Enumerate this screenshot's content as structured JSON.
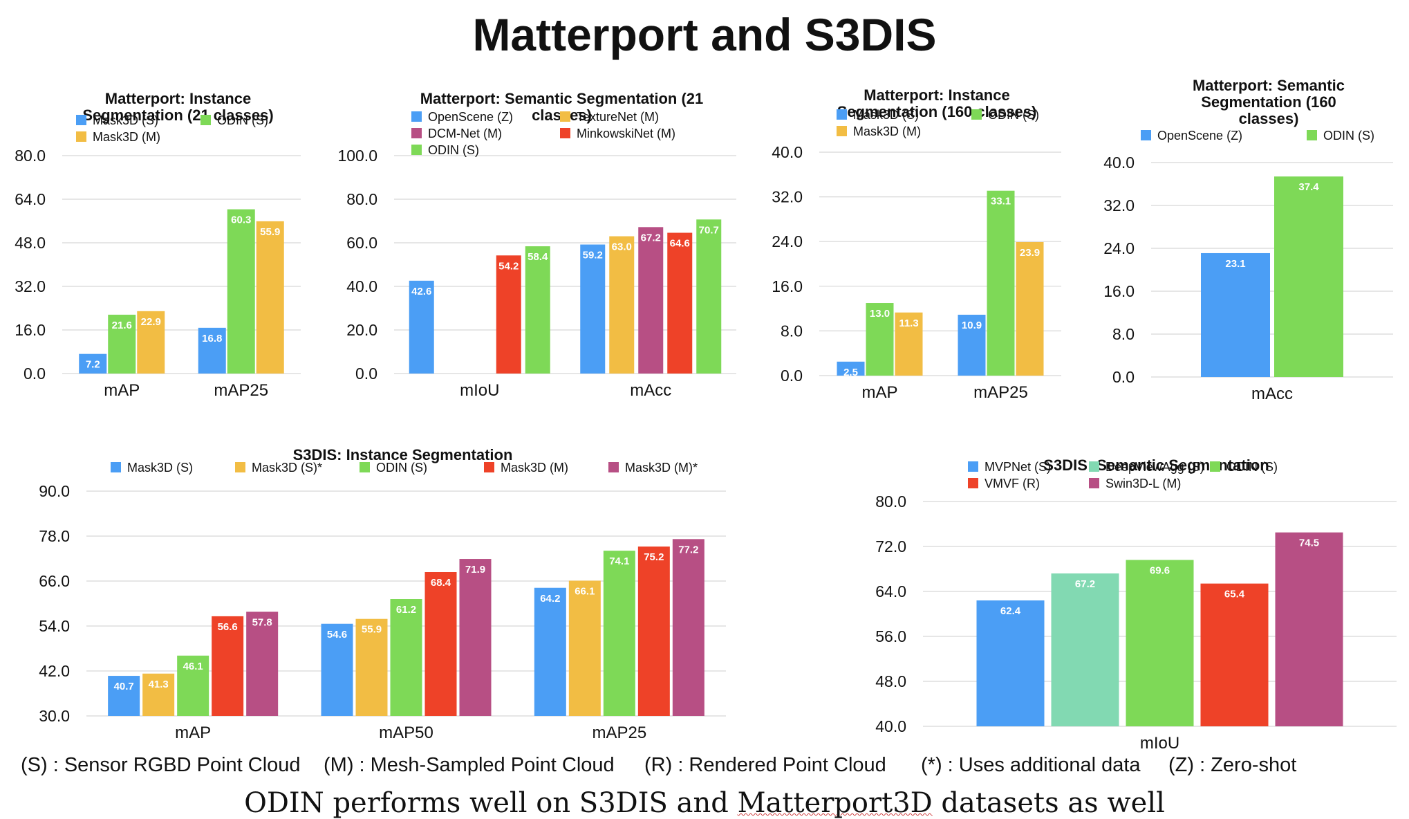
{
  "page_title": "Matterport and S3DIS",
  "caption": {
    "prefix": "ODIN performs well on S3DIS and ",
    "underlined": "Matterport3D",
    "suffix": " datasets as well"
  },
  "footnotes": [
    "(S) : Sensor RGBD Point Cloud",
    "(M) : Mesh-Sampled Point Cloud",
    "(R) : Rendered Point Cloud",
    "(*) : Uses additional data",
    "(Z) : Zero-shot"
  ],
  "colors": {
    "blue": "#4b9ef5",
    "yellow": "#f2bd44",
    "green": "#7ed957",
    "red": "#ee4228",
    "purple": "#b74f84",
    "teal": "#82d9b2"
  },
  "chart_data": [
    {
      "id": "mp-inst-21",
      "type": "bar",
      "title": [
        "Matterport: Instance",
        "Segmentation (21 classes)"
      ],
      "categories": [
        "mAP",
        "mAP25"
      ],
      "ylim": [
        0,
        80
      ],
      "yticks": [
        "0.0",
        "16.0",
        "32.0",
        "48.0",
        "64.0",
        "80.0"
      ],
      "grid": true,
      "legend": {
        "cols": 2,
        "order": [
          0,
          2,
          1
        ]
      },
      "series": [
        {
          "name": "Mask3D (S)",
          "color": "#4b9ef5",
          "values": [
            7.2,
            16.8
          ]
        },
        {
          "name": "Mask3D (M)",
          "color": "#f2bd44",
          "values": [
            null,
            null
          ]
        },
        {
          "name": "ODIN (S)",
          "color": "#7ed957",
          "values": [
            21.6,
            60.3
          ]
        },
        {
          "name": "Mask3D (M)",
          "color": "#f2bd44",
          "values": [
            22.9,
            55.9
          ],
          "legend": false
        }
      ]
    },
    {
      "id": "mp-sem-21",
      "type": "bar",
      "title": [
        "Matterport: Semantic Segmentation (21",
        "classes)"
      ],
      "categories": [
        "mIoU",
        "mAcc"
      ],
      "ylim": [
        0,
        100
      ],
      "yticks": [
        "0.0",
        "20.0",
        "40.0",
        "60.0",
        "80.0",
        "100.0"
      ],
      "grid": true,
      "legend": {
        "cols": 2,
        "order": [
          0,
          1,
          2,
          3,
          4
        ]
      },
      "series": [
        {
          "name": "OpenScene (Z)",
          "color": "#4b9ef5",
          "values": [
            42.6,
            59.2
          ]
        },
        {
          "name": "TextureNet (M)",
          "color": "#f2bd44",
          "values": [
            null,
            63.0
          ]
        },
        {
          "name": "DCM-Net (M)",
          "color": "#b74f84",
          "values": [
            null,
            67.2
          ]
        },
        {
          "name": "MinkowskiNet (M)",
          "color": "#ee4228",
          "values": [
            54.2,
            64.6
          ]
        },
        {
          "name": "ODIN (S)",
          "color": "#7ed957",
          "values": [
            58.4,
            70.7
          ]
        }
      ]
    },
    {
      "id": "mp-inst-160",
      "type": "bar",
      "title": [
        "Matterport: Instance",
        "Segmentation (160 classes)"
      ],
      "categories": [
        "mAP",
        "mAP25"
      ],
      "ylim": [
        0,
        40
      ],
      "yticks": [
        "0.0",
        "8.0",
        "16.0",
        "24.0",
        "32.0",
        "40.0"
      ],
      "grid": true,
      "legend": {
        "cols": 2,
        "order": [
          0,
          2,
          1
        ]
      },
      "series": [
        {
          "name": "Mask3D (S)",
          "color": "#4b9ef5",
          "values": [
            2.5,
            10.9
          ]
        },
        {
          "name": "Mask3D (M)",
          "color": "#f2bd44",
          "values": [
            null,
            null
          ]
        },
        {
          "name": "ODIN (S)",
          "color": "#7ed957",
          "values": [
            13.0,
            33.1
          ]
        },
        {
          "name": "Mask3D (M)",
          "color": "#f2bd44",
          "values": [
            11.3,
            23.9
          ],
          "legend": false
        }
      ]
    },
    {
      "id": "mp-sem-160",
      "type": "bar",
      "title": [
        "Matterport: Semantic",
        "Segmentation (160",
        "classes)"
      ],
      "categories": [
        "mAcc"
      ],
      "ylim": [
        0,
        40
      ],
      "yticks": [
        "0.0",
        "8.0",
        "16.0",
        "24.0",
        "32.0",
        "40.0"
      ],
      "grid": true,
      "legend": {
        "cols": 2,
        "order": [
          0,
          1
        ]
      },
      "series": [
        {
          "name": "OpenScene (Z)",
          "color": "#4b9ef5",
          "values": [
            23.1
          ]
        },
        {
          "name": "ODIN (S)",
          "color": "#7ed957",
          "values": [
            37.4
          ]
        }
      ]
    },
    {
      "id": "s3dis-inst",
      "type": "bar",
      "title": [
        "S3DIS: Instance Segmentation"
      ],
      "categories": [
        "mAP",
        "mAP50",
        "mAP25"
      ],
      "ylim": [
        30,
        90
      ],
      "yticks": [
        "30.0",
        "42.0",
        "54.0",
        "66.0",
        "78.0",
        "90.0"
      ],
      "grid": true,
      "legend": {
        "cols": 5,
        "order": [
          0,
          1,
          2,
          3,
          4
        ]
      },
      "series": [
        {
          "name": "Mask3D (S)",
          "color": "#4b9ef5",
          "values": [
            40.7,
            54.6,
            64.2
          ]
        },
        {
          "name": "Mask3D (S)*",
          "color": "#f2bd44",
          "values": [
            41.3,
            55.9,
            66.1
          ]
        },
        {
          "name": "ODIN (S)",
          "color": "#7ed957",
          "values": [
            46.1,
            61.2,
            74.1
          ]
        },
        {
          "name": "Mask3D (M)",
          "color": "#ee4228",
          "values": [
            56.6,
            68.4,
            75.2
          ]
        },
        {
          "name": "Mask3D (M)*",
          "color": "#b74f84",
          "values": [
            57.8,
            71.9,
            77.2
          ]
        }
      ]
    },
    {
      "id": "s3dis-sem",
      "type": "bar",
      "title": [
        "S3DIS: Semantic Segmentation"
      ],
      "categories": [
        "mIoU"
      ],
      "ylim": [
        40,
        80
      ],
      "yticks": [
        "40.0",
        "48.0",
        "56.0",
        "64.0",
        "72.0",
        "80.0"
      ],
      "grid": true,
      "legend": {
        "cols": 3,
        "order": [
          0,
          1,
          2,
          3,
          4
        ]
      },
      "series": [
        {
          "name": "MVPNet (S)",
          "color": "#4b9ef5",
          "values": [
            62.4
          ]
        },
        {
          "name": "DeepViewAgg (S)",
          "color": "#82d9b2",
          "values": [
            67.2
          ]
        },
        {
          "name": "ODIN (S)",
          "color": "#7ed957",
          "values": [
            69.6
          ]
        },
        {
          "name": "VMVF (R)",
          "color": "#ee4228",
          "values": [
            65.4
          ]
        },
        {
          "name": "Swin3D-L (M)",
          "color": "#b74f84",
          "values": [
            74.5
          ]
        }
      ]
    }
  ]
}
